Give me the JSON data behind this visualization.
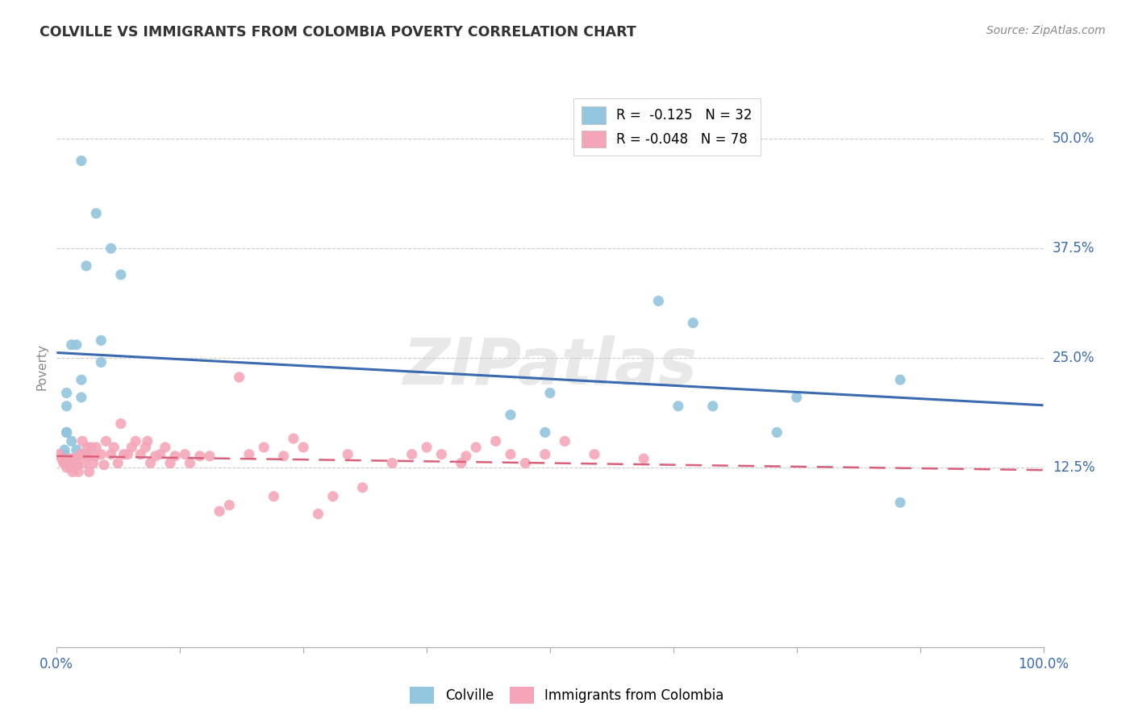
{
  "title": "COLVILLE VS IMMIGRANTS FROM COLOMBIA POVERTY CORRELATION CHART",
  "source": "Source: ZipAtlas.com",
  "ylabel": "Poverty",
  "xlim": [
    0,
    1.0
  ],
  "ylim": [
    -0.08,
    0.56
  ],
  "yticks": [
    0.125,
    0.25,
    0.375,
    0.5
  ],
  "yticklabels": [
    "12.5%",
    "25.0%",
    "37.5%",
    "50.0%"
  ],
  "xticks": [
    0.0,
    0.125,
    0.25,
    0.375,
    0.5,
    0.625,
    0.75,
    0.875,
    1.0
  ],
  "xticklabel_left": "0.0%",
  "xticklabel_right": "100.0%",
  "legend_r_blue": "R =  -0.125",
  "legend_n_blue": "N = 32",
  "legend_r_pink": "R = -0.048",
  "legend_n_pink": "N = 78",
  "blue_color": "#92C5DE",
  "pink_color": "#F4A6B8",
  "blue_line_color": "#3A6BAF",
  "pink_line_color": "#D9607A",
  "watermark": "ZIPatlas",
  "blue_scatter_x": [
    0.025,
    0.04,
    0.03,
    0.055,
    0.065,
    0.045,
    0.045,
    0.015,
    0.02,
    0.025,
    0.025,
    0.01,
    0.01,
    0.01,
    0.01,
    0.015,
    0.02,
    0.008,
    0.008,
    0.018,
    0.008,
    0.5,
    0.46,
    0.495,
    0.61,
    0.645,
    0.75,
    0.855,
    0.855,
    0.63,
    0.665,
    0.73
  ],
  "blue_scatter_y": [
    0.475,
    0.415,
    0.355,
    0.375,
    0.345,
    0.27,
    0.245,
    0.265,
    0.265,
    0.225,
    0.205,
    0.21,
    0.195,
    0.165,
    0.165,
    0.155,
    0.145,
    0.145,
    0.14,
    0.135,
    0.13,
    0.21,
    0.185,
    0.165,
    0.315,
    0.29,
    0.205,
    0.225,
    0.085,
    0.195,
    0.195,
    0.165
  ],
  "pink_scatter_x": [
    0.002,
    0.005,
    0.007,
    0.01,
    0.01,
    0.012,
    0.013,
    0.015,
    0.015,
    0.015,
    0.016,
    0.018,
    0.02,
    0.021,
    0.022,
    0.024,
    0.026,
    0.027,
    0.028,
    0.03,
    0.031,
    0.032,
    0.033,
    0.035,
    0.037,
    0.039,
    0.04,
    0.045,
    0.048,
    0.05,
    0.055,
    0.058,
    0.062,
    0.065,
    0.068,
    0.072,
    0.076,
    0.08,
    0.085,
    0.09,
    0.092,
    0.095,
    0.1,
    0.105,
    0.11,
    0.115,
    0.12,
    0.13,
    0.135,
    0.145,
    0.155,
    0.165,
    0.175,
    0.185,
    0.195,
    0.21,
    0.22,
    0.23,
    0.24,
    0.25,
    0.265,
    0.28,
    0.295,
    0.31,
    0.34,
    0.36,
    0.375,
    0.39,
    0.41,
    0.415,
    0.425,
    0.445,
    0.46,
    0.475,
    0.495,
    0.515,
    0.545,
    0.595
  ],
  "pink_scatter_y": [
    0.14,
    0.135,
    0.13,
    0.13,
    0.125,
    0.13,
    0.135,
    0.13,
    0.135,
    0.125,
    0.12,
    0.13,
    0.135,
    0.128,
    0.12,
    0.14,
    0.155,
    0.14,
    0.13,
    0.14,
    0.148,
    0.138,
    0.12,
    0.148,
    0.13,
    0.138,
    0.148,
    0.14,
    0.128,
    0.155,
    0.14,
    0.148,
    0.13,
    0.175,
    0.14,
    0.14,
    0.148,
    0.155,
    0.14,
    0.148,
    0.155,
    0.13,
    0.138,
    0.14,
    0.148,
    0.13,
    0.138,
    0.14,
    0.13,
    0.138,
    0.138,
    0.075,
    0.082,
    0.228,
    0.14,
    0.148,
    0.092,
    0.138,
    0.158,
    0.148,
    0.072,
    0.092,
    0.14,
    0.102,
    0.13,
    0.14,
    0.148,
    0.14,
    0.13,
    0.138,
    0.148,
    0.155,
    0.14,
    0.13,
    0.14,
    0.155,
    0.14,
    0.135
  ],
  "blue_trendline_x": [
    0.0,
    1.0
  ],
  "blue_trendline_y_start": 0.256,
  "blue_trendline_y_end": 0.196,
  "pink_trendline_y_start": 0.138,
  "pink_trendline_y_end": 0.122
}
